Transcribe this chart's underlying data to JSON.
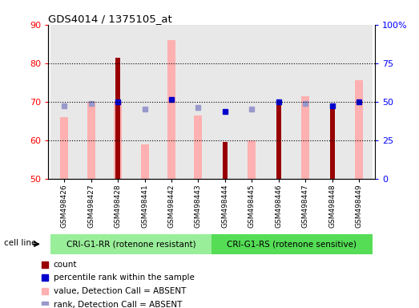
{
  "title": "GDS4014 / 1375105_at",
  "samples": [
    "GSM498426",
    "GSM498427",
    "GSM498428",
    "GSM498441",
    "GSM498442",
    "GSM498443",
    "GSM498444",
    "GSM498445",
    "GSM498446",
    "GSM498447",
    "GSM498448",
    "GSM498449"
  ],
  "group1_label": "CRI-G1-RR (rotenone resistant)",
  "group2_label": "CRI-G1-RS (rotenone sensitive)",
  "group1_count": 6,
  "group2_count": 6,
  "cell_line_label": "cell line",
  "yleft_range": [
    50,
    90
  ],
  "yright_range": [
    0,
    100
  ],
  "yleft_ticks": [
    50,
    60,
    70,
    80,
    90
  ],
  "yright_ticks": [
    0,
    25,
    50,
    75,
    100
  ],
  "yright_ticklabels": [
    "0",
    "25",
    "50",
    "75",
    "100%"
  ],
  "red_bars": [
    null,
    null,
    81.5,
    null,
    null,
    null,
    59.5,
    null,
    70.0,
    null,
    68.5,
    null
  ],
  "pink_bars": [
    66.0,
    70.0,
    70.0,
    59.0,
    86.0,
    66.5,
    null,
    60.0,
    null,
    71.5,
    null,
    75.5
  ],
  "blue_squares": [
    null,
    null,
    70.0,
    null,
    70.5,
    null,
    67.5,
    null,
    70.0,
    null,
    69.0,
    70.0
  ],
  "lightblue_squares": [
    69.0,
    69.5,
    null,
    68.0,
    null,
    68.5,
    null,
    68.0,
    null,
    69.5,
    null,
    null
  ],
  "red_bar_color": "#990000",
  "pink_bar_color": "#ffb0b0",
  "blue_square_color": "#0000cc",
  "lightblue_square_color": "#9999cc",
  "group1_bg": "#99ee99",
  "group2_bg": "#55dd55",
  "legend_entries": [
    {
      "label": "count",
      "color": "#990000"
    },
    {
      "label": "percentile rank within the sample",
      "color": "#0000cc"
    },
    {
      "label": "value, Detection Call = ABSENT",
      "color": "#ffb0b0"
    },
    {
      "label": "rank, Detection Call = ABSENT",
      "color": "#9999cc"
    }
  ]
}
